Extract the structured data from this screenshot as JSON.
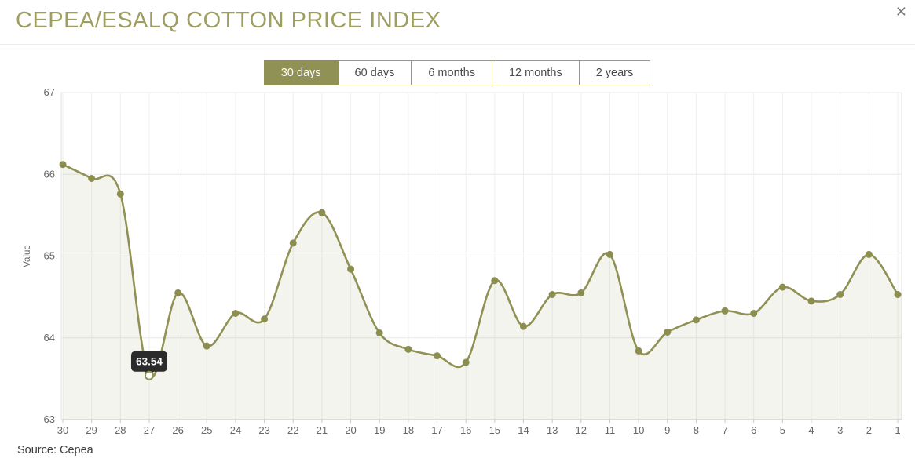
{
  "header": {
    "title": "CEPEA/ESALQ COTTON PRICE INDEX",
    "close_glyph": "✕"
  },
  "tabs": [
    {
      "label": "30 days",
      "active": true
    },
    {
      "label": "60 days",
      "active": false
    },
    {
      "label": "6 months",
      "active": false
    },
    {
      "label": "12 months",
      "active": false
    },
    {
      "label": "2 years",
      "active": false
    }
  ],
  "chart_data": {
    "type": "line",
    "title": "",
    "xlabel": "",
    "ylabel": "Value",
    "categories": [
      "30",
      "29",
      "28",
      "27",
      "26",
      "25",
      "24",
      "23",
      "22",
      "21",
      "20",
      "19",
      "18",
      "17",
      "16",
      "15",
      "14",
      "13",
      "12",
      "11",
      "10",
      "9",
      "8",
      "7",
      "6",
      "5",
      "4",
      "3",
      "2",
      "1"
    ],
    "series": [
      {
        "name": "Value",
        "values": [
          66.12,
          65.95,
          65.76,
          63.54,
          64.55,
          63.9,
          64.3,
          64.23,
          65.16,
          65.53,
          64.84,
          64.06,
          63.86,
          63.78,
          63.7,
          64.7,
          64.14,
          64.53,
          64.55,
          65.02,
          63.84,
          64.07,
          64.22,
          64.33,
          64.3,
          64.62,
          64.45,
          64.53,
          65.02,
          64.53
        ]
      }
    ],
    "ylim": [
      63,
      67
    ],
    "ytick_step": 1,
    "grid": true,
    "legend": "none",
    "tooltip": {
      "index": 3,
      "label": "63.54"
    },
    "colors": {
      "line": "#8f9155",
      "marker": "#8c8e50",
      "fill": "rgba(143,145,85,0.10)",
      "hgrid": "#e8e8e8",
      "vgrid": "#efefec",
      "axis_bottom": "#c9c9c9",
      "axis_side": "#e2e2e2",
      "tick_label": "#666666",
      "tooltip_bg": "#2b2b2b",
      "tooltip_text": "#ffffff"
    }
  },
  "footer": {
    "source": "Source: Cepea"
  }
}
